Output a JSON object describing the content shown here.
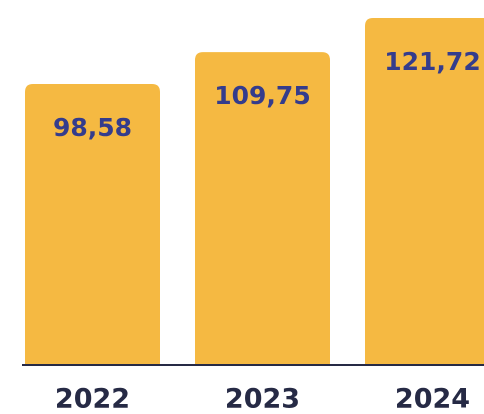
{
  "chart_data": {
    "type": "bar",
    "categories": [
      "2022",
      "2023",
      "2024"
    ],
    "values": [
      98.58,
      109.75,
      121.72
    ],
    "value_labels": [
      "98,58",
      "109,75",
      "121,72"
    ],
    "color": "#f5b942"
  }
}
